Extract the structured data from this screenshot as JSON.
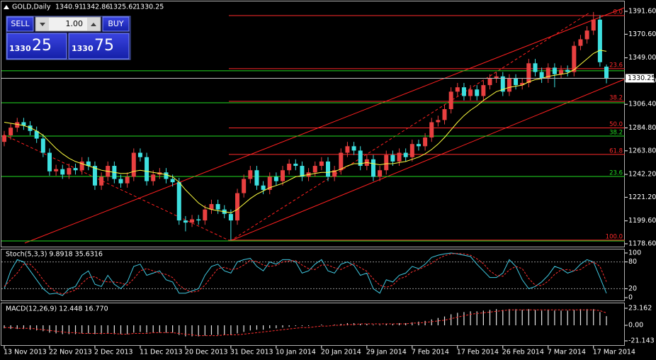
{
  "trade_panel": {
    "sell": "SELL",
    "lot": "1.00",
    "buy": "BUY",
    "sell_big": "1330",
    "sell_small": "25",
    "buy_big": "1330",
    "buy_small": "75"
  },
  "chart_data": [
    {
      "type": "candlestick",
      "title": "GOLD,Daily",
      "bull_color": "#e84040",
      "bear_color": "#3ee0e0",
      "categories": [
        "13 Nov 2013",
        null,
        null,
        null,
        null,
        null,
        null,
        "22 Nov 2013",
        null,
        null,
        null,
        null,
        null,
        null,
        "2 Dec 2013",
        null,
        null,
        null,
        null,
        null,
        null,
        "11 Dec 2013",
        null,
        null,
        null,
        null,
        null,
        null,
        "20 Dec 2013",
        null,
        null,
        null,
        null,
        null,
        null,
        "31 Dec 2013",
        null,
        null,
        null,
        null,
        null,
        null,
        "10 Jan 2014",
        null,
        null,
        null,
        null,
        null,
        null,
        "20 Jan 2014",
        null,
        null,
        null,
        null,
        null,
        null,
        "29 Jan 2014",
        null,
        null,
        null,
        null,
        null,
        null,
        "7 Feb 2014",
        null,
        null,
        null,
        null,
        null,
        null,
        "17 Feb 2014",
        null,
        null,
        null,
        null,
        null,
        null,
        "26 Feb 2014",
        null,
        null,
        null,
        null,
        null,
        null,
        "7 Mar 2014",
        null,
        null,
        null,
        null,
        null,
        null,
        "17 Mar 2014",
        null,
        null
      ],
      "open": [
        1272,
        1278,
        1285,
        1290,
        1287,
        1282,
        1275,
        1262,
        1245,
        1247,
        1242,
        1248,
        1246,
        1254,
        1250,
        1232,
        1240,
        1250,
        1238,
        1234,
        1240,
        1262,
        1258,
        1236,
        1242,
        1244,
        1238,
        1235,
        1200,
        1198,
        1201,
        1200,
        1210,
        1215,
        1210,
        1206,
        1200,
        1225,
        1238,
        1246,
        1232,
        1228,
        1240,
        1236,
        1246,
        1252,
        1250,
        1240,
        1244,
        1250,
        1254,
        1240,
        1246,
        1262,
        1268,
        1264,
        1250,
        1256,
        1240,
        1246,
        1260,
        1254,
        1262,
        1258,
        1270,
        1268,
        1276,
        1290,
        1292,
        1302,
        1318,
        1322,
        1314,
        1320,
        1314,
        1324,
        1330,
        1332,
        1318,
        1330,
        1324,
        1326,
        1344,
        1336,
        1330,
        1340,
        1334,
        1338,
        1336,
        1360,
        1366,
        1374,
        1384,
        1340.91
      ],
      "high": [
        1282,
        1289,
        1294,
        1294,
        1291,
        1286,
        1279,
        1266,
        1251,
        1251,
        1252,
        1252,
        1258,
        1258,
        1254,
        1244,
        1254,
        1254,
        1242,
        1244,
        1266,
        1266,
        1262,
        1246,
        1248,
        1248,
        1242,
        1239,
        1204,
        1205,
        1205,
        1214,
        1219,
        1219,
        1214,
        1210,
        1229,
        1242,
        1250,
        1250,
        1236,
        1244,
        1244,
        1250,
        1256,
        1256,
        1254,
        1248,
        1254,
        1258,
        1258,
        1250,
        1266,
        1272,
        1272,
        1268,
        1260,
        1260,
        1250,
        1264,
        1264,
        1266,
        1266,
        1274,
        1274,
        1280,
        1294,
        1296,
        1306,
        1322,
        1326,
        1326,
        1324,
        1324,
        1328,
        1334,
        1336,
        1336,
        1334,
        1334,
        1330,
        1348,
        1348,
        1340,
        1344,
        1344,
        1342,
        1342,
        1364,
        1370,
        1378,
        1391,
        1388,
        1342.86
      ],
      "low": [
        1268,
        1274,
        1281,
        1283,
        1278,
        1271,
        1258,
        1241,
        1241,
        1238,
        1238,
        1242,
        1242,
        1246,
        1228,
        1228,
        1236,
        1234,
        1230,
        1230,
        1236,
        1254,
        1232,
        1232,
        1238,
        1234,
        1231,
        1196,
        1190,
        1194,
        1196,
        1196,
        1206,
        1206,
        1202,
        1182,
        1196,
        1221,
        1234,
        1228,
        1224,
        1224,
        1232,
        1232,
        1242,
        1246,
        1236,
        1236,
        1240,
        1246,
        1236,
        1236,
        1242,
        1258,
        1260,
        1246,
        1246,
        1236,
        1236,
        1242,
        1250,
        1250,
        1254,
        1254,
        1264,
        1264,
        1272,
        1286,
        1288,
        1298,
        1314,
        1310,
        1310,
        1310,
        1310,
        1320,
        1326,
        1314,
        1314,
        1320,
        1320,
        1322,
        1332,
        1326,
        1326,
        1322,
        1330,
        1332,
        1332,
        1356,
        1362,
        1370,
        1341,
        1325.62
      ],
      "close": [
        1278,
        1285,
        1290,
        1287,
        1282,
        1275,
        1262,
        1245,
        1247,
        1242,
        1248,
        1246,
        1254,
        1250,
        1232,
        1240,
        1250,
        1238,
        1234,
        1240,
        1262,
        1258,
        1236,
        1242,
        1244,
        1238,
        1235,
        1200,
        1198,
        1201,
        1200,
        1210,
        1215,
        1210,
        1206,
        1200,
        1225,
        1238,
        1246,
        1232,
        1228,
        1240,
        1236,
        1246,
        1252,
        1250,
        1240,
        1244,
        1250,
        1254,
        1240,
        1246,
        1262,
        1268,
        1264,
        1250,
        1256,
        1240,
        1246,
        1260,
        1254,
        1262,
        1258,
        1270,
        1268,
        1276,
        1290,
        1292,
        1302,
        1318,
        1322,
        1314,
        1320,
        1314,
        1324,
        1330,
        1332,
        1318,
        1330,
        1324,
        1326,
        1344,
        1336,
        1330,
        1340,
        1334,
        1338,
        1336,
        1360,
        1366,
        1374,
        1384,
        1345,
        1330.25
      ],
      "series": [
        {
          "color": "#ffff40",
          "values": [
            1290,
            1289,
            1288,
            1287,
            1285,
            1282,
            1278,
            1272,
            1266,
            1261,
            1257,
            1254,
            1252,
            1250,
            1248,
            1246,
            1245,
            1244,
            1243,
            1243,
            1245,
            1246,
            1245,
            1244,
            1243,
            1242,
            1240,
            1235,
            1228,
            1222,
            1216,
            1212,
            1210,
            1209,
            1208,
            1207,
            1210,
            1215,
            1220,
            1224,
            1227,
            1230,
            1232,
            1234,
            1237,
            1240,
            1241,
            1242,
            1243,
            1244,
            1244,
            1245,
            1247,
            1250,
            1252,
            1252,
            1253,
            1252,
            1251,
            1252,
            1252,
            1253,
            1254,
            1256,
            1258,
            1261,
            1265,
            1270,
            1276,
            1283,
            1290,
            1296,
            1301,
            1305,
            1310,
            1314,
            1318,
            1320,
            1322,
            1323,
            1324,
            1327,
            1329,
            1330,
            1332,
            1333,
            1334,
            1335,
            1338,
            1343,
            1348,
            1353,
            1356,
            1355
          ]
        }
      ],
      "bid": 1330.25,
      "ylim": [
        1178.6,
        1391.6
      ],
      "yticks": [
        {
          "value": 1391.6,
          "label": "1391.60"
        },
        {
          "value": 1370.6,
          "label": "1370.60"
        },
        {
          "value": 1349,
          "label": "1349.00"
        },
        {
          "value": 1327.8,
          "label": "1327.80"
        },
        {
          "value": 1306.4,
          "label": "1306.40"
        },
        {
          "value": 1284.8,
          "label": "1284.80"
        },
        {
          "value": 1263.8,
          "label": "1263.80"
        },
        {
          "value": 1242.2,
          "label": "1242.20"
        },
        {
          "value": 1221.2,
          "label": "1221.20"
        },
        {
          "value": 1199.6,
          "label": "1199.60"
        },
        {
          "value": 1178.6,
          "label": "1178.60"
        }
      ],
      "fibo_red": {
        "color": "#ff2a2a",
        "levels": [
          {
            "price": 1387.7,
            "label": "0.0"
          },
          {
            "price": 1339.1,
            "label": "23.6"
          },
          {
            "price": 1309.1,
            "label": "38.2"
          },
          {
            "price": 1284.8,
            "label": "50.0"
          },
          {
            "price": 1260.5,
            "label": "61.8"
          },
          {
            "price": 1181.9,
            "label": "100.0"
          }
        ]
      },
      "fibo_green": {
        "color": "#22dd22",
        "levels": [
          {
            "price": 1337.1
          },
          {
            "price": 1307.8
          },
          {
            "price": 1277.3,
            "label": "38.2"
          },
          {
            "price": 1240.3,
            "label": "23.6"
          },
          {
            "price": 1181.2
          }
        ]
      }
    },
    {
      "type": "line",
      "title": "Stoch(5,3,3) 9.8918 35.6316",
      "ylim": [
        0,
        100
      ],
      "yticks": [
        100,
        80,
        20,
        0
      ],
      "grid": true,
      "series": [
        {
          "color": "#40c8e0",
          "values": [
            20,
            60,
            85,
            80,
            60,
            40,
            20,
            8,
            10,
            5,
            20,
            25,
            50,
            60,
            30,
            25,
            50,
            30,
            20,
            35,
            70,
            75,
            50,
            55,
            60,
            40,
            35,
            10,
            10,
            15,
            20,
            50,
            70,
            75,
            60,
            55,
            80,
            85,
            88,
            70,
            60,
            80,
            75,
            85,
            85,
            80,
            55,
            60,
            75,
            85,
            60,
            55,
            75,
            80,
            72,
            50,
            55,
            20,
            10,
            40,
            35,
            50,
            55,
            70,
            65,
            75,
            90,
            95,
            98,
            100,
            98,
            95,
            92,
            75,
            60,
            45,
            45,
            55,
            85,
            70,
            40,
            20,
            25,
            35,
            50,
            70,
            65,
            55,
            60,
            75,
            85,
            80,
            45,
            9.8918
          ]
        },
        {
          "color": "#ff3030",
          "dash": true,
          "values": [
            25,
            40,
            55,
            75,
            75,
            60,
            40,
            23,
            13,
            8,
            12,
            17,
            32,
            45,
            47,
            38,
            35,
            35,
            33,
            28,
            42,
            60,
            65,
            60,
            55,
            52,
            45,
            28,
            18,
            12,
            15,
            28,
            47,
            65,
            68,
            63,
            65,
            73,
            84,
            81,
            73,
            70,
            72,
            80,
            82,
            83,
            73,
            65,
            63,
            73,
            73,
            67,
            63,
            70,
            76,
            67,
            59,
            42,
            28,
            23,
            28,
            42,
            47,
            58,
            63,
            70,
            77,
            87,
            94,
            98,
            99,
            98,
            95,
            87,
            76,
            60,
            50,
            48,
            62,
            70,
            65,
            43,
            28,
            27,
            37,
            52,
            62,
            63,
            60,
            63,
            73,
            80,
            70,
            35.6316
          ]
        }
      ]
    },
    {
      "type": "bar",
      "title": "MACD(12,26,9) 12.448 16.770",
      "ylim": [
        -21.143,
        23.162
      ],
      "yticks": [
        23.162,
        {
          "value": 0,
          "label": "0.00"
        },
        -21.143
      ],
      "series": [
        {
          "color": "#e8e8e8",
          "values": [
            -4,
            -5,
            -5,
            -5,
            -6,
            -7,
            -8,
            -10,
            -11,
            -12,
            -12,
            -12,
            -11,
            -11,
            -12,
            -12,
            -11,
            -12,
            -12,
            -12,
            -10,
            -9,
            -10,
            -10,
            -10,
            -10,
            -10,
            -13,
            -15,
            -15,
            -15,
            -14,
            -13,
            -13,
            -13,
            -13,
            -11,
            -9,
            -7,
            -6,
            -6,
            -4,
            -4,
            -3,
            -2,
            -1,
            -1,
            -1,
            0,
            1,
            0,
            1,
            2,
            3,
            3,
            2,
            2,
            1,
            1,
            2,
            2,
            3,
            3,
            4,
            5,
            6,
            8,
            10,
            12,
            15,
            17,
            18,
            19,
            19,
            20,
            21,
            22,
            21,
            22,
            22,
            21,
            22,
            21,
            20,
            21,
            20,
            20,
            20,
            21,
            22,
            22,
            22,
            18,
            12.448
          ]
        },
        {
          "color": "#ff3030",
          "dash": true,
          "line": true,
          "values": [
            -3,
            -3,
            -4,
            -4,
            -4,
            -5,
            -6,
            -7,
            -8,
            -9,
            -10,
            -10,
            -11,
            -11,
            -11,
            -11,
            -11,
            -11,
            -12,
            -12,
            -11,
            -11,
            -11,
            -10,
            -10,
            -10,
            -10,
            -11,
            -12,
            -13,
            -14,
            -14,
            -14,
            -14,
            -13,
            -13,
            -13,
            -12,
            -11,
            -10,
            -9,
            -8,
            -7,
            -6,
            -5,
            -4,
            -3,
            -3,
            -2,
            -1,
            -1,
            0,
            0,
            1,
            1,
            2,
            2,
            2,
            2,
            2,
            2,
            2,
            2,
            3,
            3,
            4,
            5,
            6,
            7,
            9,
            11,
            13,
            15,
            16,
            17,
            18,
            19,
            20,
            21,
            21,
            21,
            21,
            21,
            21,
            21,
            21,
            21,
            21,
            21,
            21,
            21,
            21,
            20,
            16.77
          ]
        }
      ]
    }
  ]
}
